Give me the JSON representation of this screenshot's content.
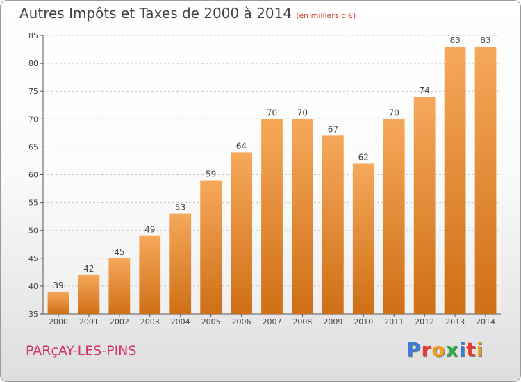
{
  "header": {
    "title": "Autres Impôts et Taxes de 2000 à 2014",
    "unit": "(en milliers d'€)"
  },
  "footer": {
    "place": "PARçAY-LES-PINS",
    "brand": "Proxiti"
  },
  "colors": {
    "bar_top": "#f6a85a",
    "bar_bottom": "#cf6f16",
    "brand_letters": [
      "#3a7bd5",
      "#e63b2e",
      "#f0a020",
      "#2fa84f",
      "#3a7bd5",
      "#e63b2e",
      "#f0a020"
    ]
  },
  "chart_data": {
    "type": "bar",
    "categories": [
      "2000",
      "2001",
      "2002",
      "2003",
      "2004",
      "2005",
      "2006",
      "2007",
      "2008",
      "2009",
      "2010",
      "2011",
      "2012",
      "2013",
      "2014"
    ],
    "values": [
      39,
      42,
      45,
      49,
      53,
      59,
      64,
      70,
      70,
      67,
      62,
      70,
      74,
      83,
      83
    ],
    "title": "Autres Impôts et Taxes de 2000 à 2014",
    "ylabel": "",
    "xlabel": "",
    "ylim": [
      35,
      85
    ],
    "yticks": [
      35,
      40,
      45,
      50,
      55,
      60,
      65,
      70,
      75,
      80,
      85
    ],
    "grid": true,
    "data_labels": true
  }
}
